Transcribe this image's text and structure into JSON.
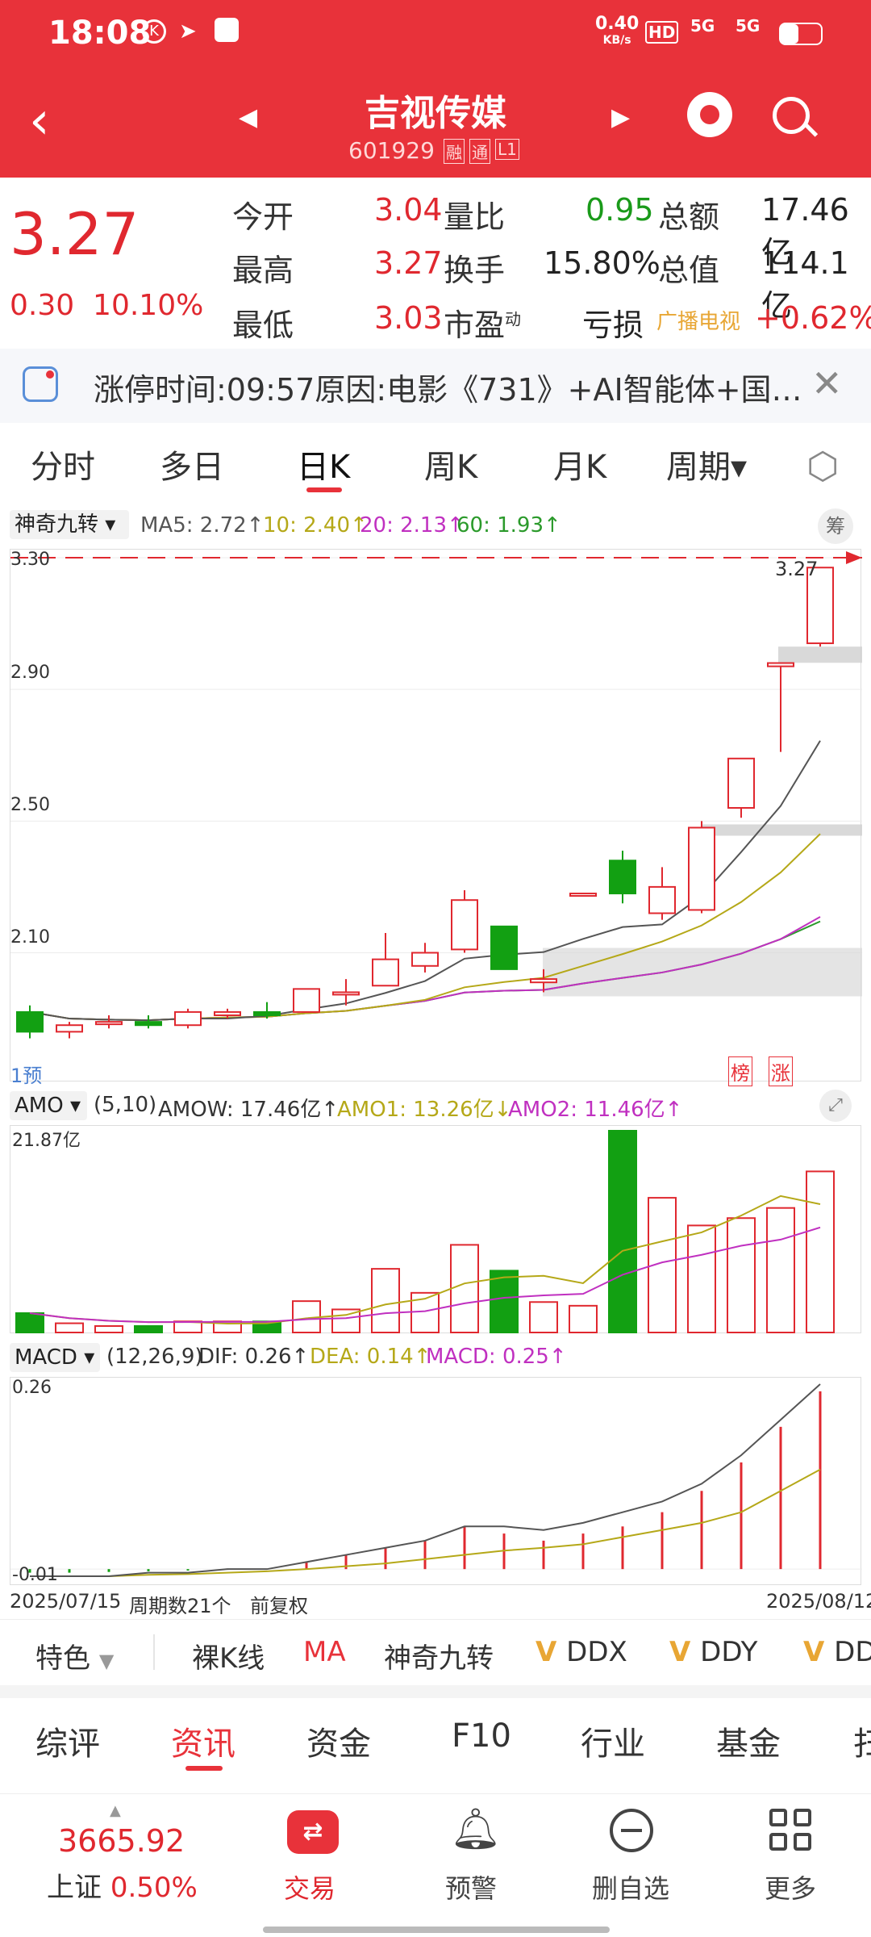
{
  "status": {
    "time": "18:08",
    "speed": "0.40",
    "speed_unit": "KB/s",
    "net1": "5G",
    "net2": "5G",
    "hd": "HD"
  },
  "nav": {
    "title": "吉视传媒",
    "code": "601929",
    "badge1": "融",
    "badge2": "通",
    "badge3": "L1"
  },
  "quote": {
    "price": "3.27",
    "change": "0.30",
    "change_pct": "10.10%",
    "open_label": "今开",
    "open": "3.04",
    "high_label": "最高",
    "high": "3.27",
    "low_label": "最低",
    "low": "3.03",
    "vol_ratio_label": "量比",
    "vol_ratio": "0.95",
    "turnover_label": "换手",
    "turnover": "15.80%",
    "pe_label": "市盈",
    "pe_sup": "动",
    "pe": "亏损",
    "amount_label": "总额",
    "amount": "17.46亿",
    "mktcap_label": "总值",
    "mktcap": "114.1亿",
    "sector": "广播电视",
    "sector_pct": "+0.62%"
  },
  "notice": {
    "text": "涨停时间:09:57原因:电影《731》+AI智能体+国…"
  },
  "period_tabs": [
    "分时",
    "多日",
    "日K",
    "周K",
    "月K",
    "周期▾"
  ],
  "kline": {
    "indicator": "神奇九转",
    "ma5": "MA5: 2.72↑",
    "ma10": "10: 2.40↑",
    "ma20": "20: 2.13↑",
    "ma60": "60: 1.93↑",
    "chip": "筹",
    "y_labels": [
      "3.30",
      "2.90",
      "2.50",
      "2.10"
    ],
    "last_label": "3.27",
    "pre_label": "1预",
    "tag_bang": "榜",
    "tag_zhang": "涨"
  },
  "amo": {
    "name": "AMO",
    "params": "(5,10)",
    "amow": "AMOW: 17.46亿↑",
    "amo1": "AMO1: 13.26亿↓",
    "amo2": "AMO2: 11.46亿↑",
    "ymax": "21.87亿"
  },
  "macd": {
    "name": "MACD",
    "params": "(12,26,9)",
    "dif": "DIF: 0.26↑",
    "dea": "DEA: 0.14↑",
    "macd": "MACD: 0.25↑",
    "ytop": "0.26",
    "ybot": "-0.01",
    "date_start": "2025/07/15",
    "period_count": "周期数21个",
    "adjust": "前复权",
    "date_end": "2025/08/12"
  },
  "feature_bar": {
    "label": "特色",
    "items": [
      "裸K线",
      "MA",
      "神奇九转",
      "DDX",
      "DDY",
      "DD"
    ]
  },
  "info_tabs": [
    "综评",
    "资讯",
    "资金",
    "F10",
    "行业",
    "基金",
    "扫"
  ],
  "bottom": {
    "index_value": "3665.92",
    "index_name": "上证",
    "index_pct": "0.50%",
    "trade": "交易",
    "alert": "预警",
    "remove": "删自选",
    "more": "更多"
  },
  "chart_data": {
    "type": "candlestick",
    "dates_start": "2025/07/15",
    "dates_end": "2025/08/12",
    "candles": [
      {
        "o": 1.86,
        "c": 1.92,
        "h": 1.94,
        "l": 1.84,
        "up": false
      },
      {
        "o": 1.86,
        "c": 1.88,
        "h": 1.89,
        "l": 1.84,
        "up": true
      },
      {
        "o": 1.89,
        "c": 1.89,
        "h": 1.91,
        "l": 1.87,
        "up": true
      },
      {
        "o": 1.88,
        "c": 1.89,
        "h": 1.91,
        "l": 1.87,
        "up": false
      },
      {
        "o": 1.88,
        "c": 1.92,
        "h": 1.93,
        "l": 1.87,
        "up": true
      },
      {
        "o": 1.91,
        "c": 1.92,
        "h": 1.93,
        "l": 1.9,
        "up": true
      },
      {
        "o": 1.91,
        "c": 1.92,
        "h": 1.95,
        "l": 1.9,
        "up": false
      },
      {
        "o": 1.92,
        "c": 1.99,
        "h": 1.99,
        "l": 1.92,
        "up": true
      },
      {
        "o": 1.98,
        "c": 1.98,
        "h": 2.02,
        "l": 1.94,
        "up": true
      },
      {
        "o": 2.0,
        "c": 2.08,
        "h": 2.16,
        "l": 2.0,
        "up": true
      },
      {
        "o": 2.06,
        "c": 2.1,
        "h": 2.13,
        "l": 2.04,
        "up": true
      },
      {
        "o": 2.11,
        "c": 2.26,
        "h": 2.29,
        "l": 2.1,
        "up": true
      },
      {
        "o": 2.18,
        "c": 2.05,
        "h": 2.18,
        "l": 2.05,
        "up": false
      },
      {
        "o": 2.01,
        "c": 2.02,
        "h": 2.05,
        "l": 1.98,
        "up": true
      },
      {
        "o": 2.28,
        "c": 2.28,
        "h": 2.28,
        "l": 2.28,
        "up": true
      },
      {
        "o": 2.38,
        "c": 2.28,
        "h": 2.41,
        "l": 2.25,
        "up": false
      },
      {
        "o": 2.22,
        "c": 2.3,
        "h": 2.36,
        "l": 2.2,
        "up": true
      },
      {
        "o": 2.23,
        "c": 2.48,
        "h": 2.5,
        "l": 2.22,
        "up": true
      },
      {
        "o": 2.54,
        "c": 2.69,
        "h": 2.69,
        "l": 2.51,
        "up": true
      },
      {
        "o": 2.97,
        "c": 2.98,
        "h": 2.98,
        "l": 2.71,
        "up": true
      },
      {
        "o": 3.04,
        "c": 3.27,
        "h": 3.27,
        "l": 3.03,
        "up": true
      }
    ],
    "amo": [
      2.1,
      1.0,
      0.7,
      0.7,
      1.2,
      1.2,
      1.2,
      3.4,
      2.5,
      6.9,
      4.3,
      9.5,
      6.7,
      3.3,
      2.9,
      21.87,
      14.6,
      11.6,
      12.4,
      13.5,
      17.46
    ],
    "amo_up": [
      false,
      true,
      true,
      false,
      true,
      true,
      false,
      true,
      true,
      true,
      true,
      true,
      false,
      true,
      true,
      false,
      true,
      true,
      true,
      true,
      true
    ],
    "macd_hist": [
      -0.005,
      -0.005,
      -0.004,
      -0.003,
      -0.002,
      -0.001,
      0.0,
      0.01,
      0.02,
      0.03,
      0.04,
      0.06,
      0.05,
      0.04,
      0.05,
      0.06,
      0.08,
      0.11,
      0.15,
      0.2,
      0.25
    ],
    "dif": [
      -0.01,
      -0.01,
      -0.01,
      -0.005,
      -0.005,
      0.0,
      0.0,
      0.01,
      0.02,
      0.03,
      0.04,
      0.06,
      0.06,
      0.055,
      0.065,
      0.08,
      0.095,
      0.12,
      0.16,
      0.21,
      0.26
    ],
    "dea": [
      -0.01,
      -0.01,
      -0.01,
      -0.008,
      -0.007,
      -0.005,
      -0.003,
      0.0,
      0.004,
      0.008,
      0.014,
      0.02,
      0.026,
      0.03,
      0.035,
      0.045,
      0.055,
      0.065,
      0.08,
      0.11,
      0.14
    ]
  }
}
